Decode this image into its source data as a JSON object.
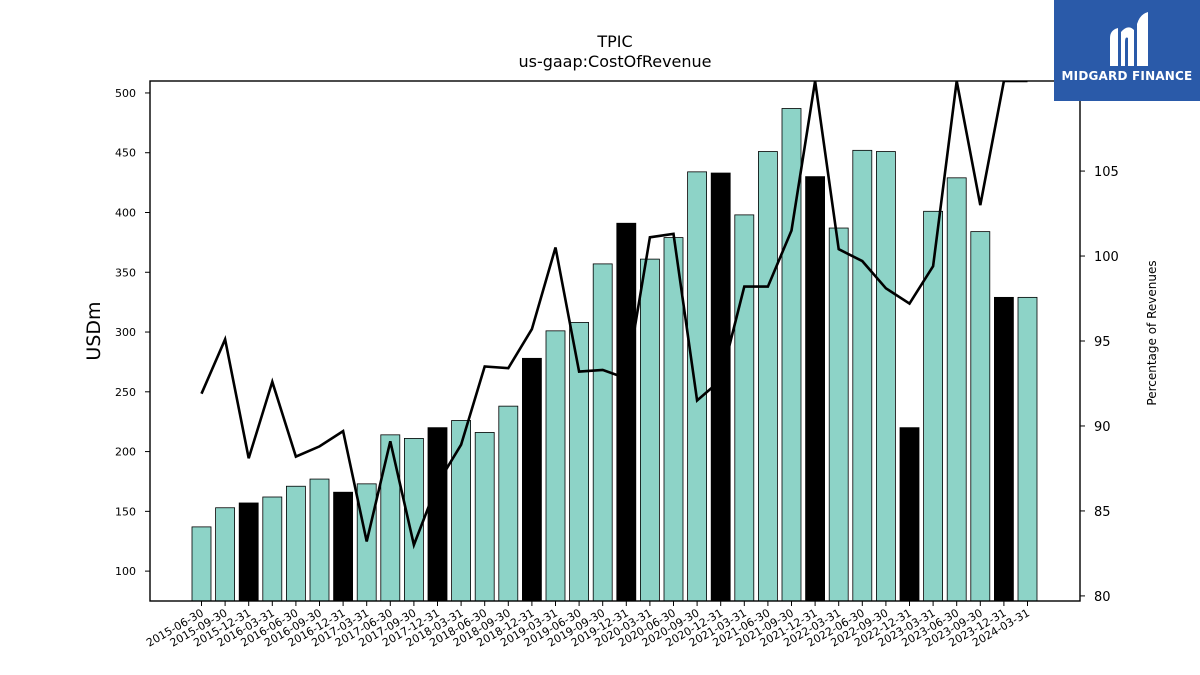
{
  "chart_data": {
    "type": "bar",
    "title": "TPIC",
    "subtitle": "us-gaap:CostOfRevenue",
    "ylabel": "USDm",
    "y2label": "Percentage of Revenues",
    "ylim": [
      75,
      510
    ],
    "y2lim": [
      79.7,
      110.3
    ],
    "yticks": [
      100,
      150,
      200,
      250,
      300,
      350,
      400,
      450,
      500
    ],
    "y2ticks": [
      80,
      85,
      90,
      95,
      100,
      105
    ],
    "categories": [
      "2015-06-30",
      "2015-09-30",
      "2015-12-31",
      "2016-03-31",
      "2016-06-30",
      "2016-09-30",
      "2016-12-31",
      "2017-03-31",
      "2017-06-30",
      "2017-09-30",
      "2017-12-31",
      "2018-03-31",
      "2018-06-30",
      "2018-09-30",
      "2018-12-31",
      "2019-03-31",
      "2019-06-30",
      "2019-09-30",
      "2019-12-31",
      "2020-03-31",
      "2020-06-30",
      "2020-09-30",
      "2020-12-31",
      "2021-03-31",
      "2021-06-30",
      "2021-09-30",
      "2021-12-31",
      "2022-03-31",
      "2022-06-30",
      "2022-09-30",
      "2022-12-31",
      "2023-03-31",
      "2023-06-30",
      "2023-09-30",
      "2023-12-31",
      "2024-03-31"
    ],
    "series": [
      {
        "type": "bar",
        "values": [
          137,
          153,
          157,
          162,
          171,
          177,
          166,
          173,
          214,
          211,
          220,
          226,
          216,
          238,
          278,
          301,
          308,
          357,
          391,
          361,
          379,
          434,
          433,
          398,
          451,
          487,
          430,
          387,
          452,
          451,
          220,
          401,
          429,
          384,
          329,
          329
        ],
        "colors": [
          "#8dd3c7",
          "#8dd3c7",
          "#000000",
          "#8dd3c7",
          "#8dd3c7",
          "#8dd3c7",
          "#000000",
          "#8dd3c7",
          "#8dd3c7",
          "#8dd3c7",
          "#000000",
          "#8dd3c7",
          "#8dd3c7",
          "#8dd3c7",
          "#000000",
          "#8dd3c7",
          "#8dd3c7",
          "#8dd3c7",
          "#000000",
          "#8dd3c7",
          "#8dd3c7",
          "#8dd3c7",
          "#000000",
          "#8dd3c7",
          "#8dd3c7",
          "#8dd3c7",
          "#000000",
          "#8dd3c7",
          "#8dd3c7",
          "#8dd3c7",
          "#000000",
          "#8dd3c7",
          "#8dd3c7",
          "#8dd3c7",
          "#000000",
          "#8dd3c7"
        ]
      },
      {
        "type": "line",
        "axis": "right",
        "color": "#000000",
        "values": [
          91.9,
          95.1,
          88.1,
          92.6,
          88.2,
          88.8,
          89.7,
          83.2,
          89.1,
          83.0,
          86.6,
          88.9,
          93.5,
          93.4,
          95.7,
          100.5,
          93.2,
          93.3,
          92.8,
          101.1,
          101.3,
          91.5,
          92.7,
          98.2,
          98.2,
          101.5,
          110.3,
          100.4,
          99.7,
          98.1,
          97.2,
          99.4,
          110.3,
          103.0,
          110.3,
          110.3
        ]
      }
    ],
    "bar_color": "#8dd3c7",
    "highlight_color": "#000000"
  },
  "logo": {
    "text": "MIDGARD FINANCE",
    "bg": "#2a5aa9"
  }
}
